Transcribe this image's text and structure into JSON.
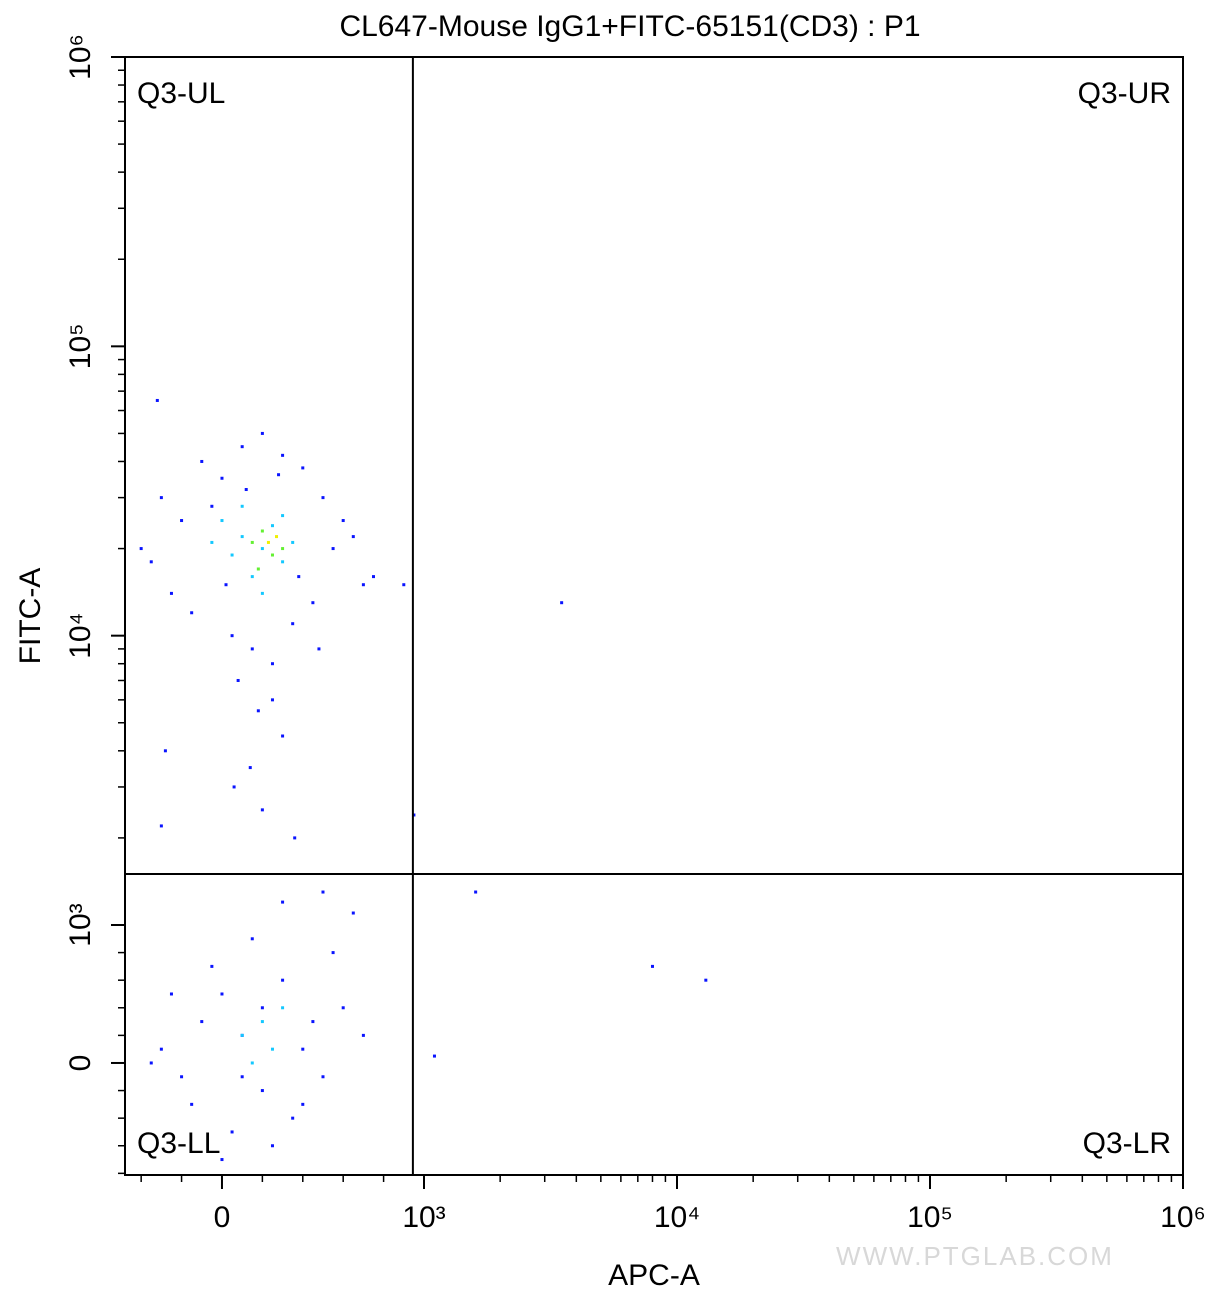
{
  "chart_data": {
    "type": "scatter",
    "title": "CL647-Mouse IgG1+FITC-65151(CD3) : P1",
    "x_label": "APC-A",
    "y_label": "FITC-A",
    "watermark": "WWW.PTGLAB.COM",
    "xlim": [
      -480,
      1000000
    ],
    "ylim": [
      -812,
      1000000
    ],
    "xticks": [
      0,
      {
        "value": 1000,
        "label": "10³"
      },
      {
        "value": 10000,
        "label": "10⁴"
      },
      {
        "value": 100000,
        "label": "10⁵"
      },
      {
        "value": 1000000,
        "label": "10⁶"
      }
    ],
    "yticks": [
      0,
      {
        "value": 1000,
        "label": "10³"
      },
      {
        "value": 10000,
        "label": "10⁴"
      },
      {
        "value": 100000,
        "label": "10⁵"
      },
      {
        "value": 1000000,
        "label": "10⁶"
      }
    ],
    "xminor": [
      -400,
      -200,
      200,
      400,
      600,
      800,
      2000,
      3000,
      4000,
      5000,
      6000,
      7000,
      8000,
      9000,
      20000,
      30000,
      40000,
      50000,
      60000,
      70000,
      80000,
      90000,
      200000,
      300000,
      400000,
      500000,
      600000,
      700000,
      800000,
      900000
    ],
    "yminor": [
      -800,
      -600,
      -400,
      -200,
      200,
      400,
      600,
      800,
      2000,
      3000,
      4000,
      5000,
      6000,
      7000,
      8000,
      9000,
      20000,
      30000,
      40000,
      50000,
      60000,
      70000,
      80000,
      90000,
      200000,
      300000,
      400000,
      500000,
      600000,
      700000,
      800000,
      900000
    ],
    "gate": {
      "x": 945,
      "y": 1500
    },
    "quadrants": {
      "UL": "Q3-UL",
      "UR": "Q3-UR",
      "LL": "Q3-LL",
      "LR": "Q3-LR"
    },
    "series": [
      {
        "color": "#0a14ff",
        "x": [
          -300,
          -200,
          -100,
          0,
          100,
          200,
          300,
          400,
          500,
          600,
          700,
          -350,
          -250,
          -150,
          50,
          150,
          250,
          350,
          450,
          550,
          650,
          -50,
          120,
          280,
          380,
          80,
          180,
          300,
          -280,
          60,
          200,
          -300,
          360,
          -400,
          750,
          -320,
          20,
          480,
          250,
          140,
          -300,
          -200,
          -100,
          0,
          100,
          200,
          300,
          400,
          500,
          600,
          -350,
          -150,
          50,
          250,
          350,
          450,
          550,
          150,
          300,
          650,
          -50,
          700,
          -250,
          100,
          400,
          200,
          0,
          500,
          3500,
          1600,
          8000,
          13000,
          1100,
          950,
          900
        ],
        "values": [
          30000,
          25000,
          40000,
          35000,
          45000,
          50000,
          42000,
          38000,
          30000,
          25000,
          15000,
          18000,
          14000,
          12000,
          10000,
          9000,
          8000,
          11000,
          13000,
          20000,
          22000,
          28000,
          32000,
          36000,
          16000,
          7000,
          5500,
          4500,
          4000,
          3000,
          2500,
          2200,
          2000,
          20000,
          16000,
          65000,
          15000,
          9000,
          6000,
          3500,
          100,
          -100,
          300,
          500,
          200,
          -200,
          600,
          100,
          -100,
          400,
          0,
          -300,
          -500,
          -600,
          -400,
          300,
          800,
          900,
          1200,
          1100,
          700,
          200,
          500,
          -100,
          -300,
          400,
          -700,
          1300,
          13000,
          1300,
          700,
          600,
          50,
          2400,
          15000
        ]
      },
      {
        "color": "#14c8ff",
        "x": [
          0,
          100,
          200,
          300,
          150,
          250,
          350,
          50,
          200,
          100,
          300,
          -50,
          100,
          200,
          250,
          150,
          300
        ],
        "values": [
          25000,
          22000,
          20000,
          18000,
          16000,
          24000,
          21000,
          19000,
          14000,
          28000,
          26000,
          21000,
          200,
          300,
          100,
          0,
          400
        ]
      },
      {
        "color": "#64f032",
        "x": [
          150,
          250,
          200,
          300,
          180
        ],
        "values": [
          21000,
          19000,
          23000,
          20000,
          17000
        ]
      },
      {
        "color": "#f0f000",
        "x": [
          230,
          270
        ],
        "values": [
          21000,
          22000
        ]
      }
    ]
  }
}
